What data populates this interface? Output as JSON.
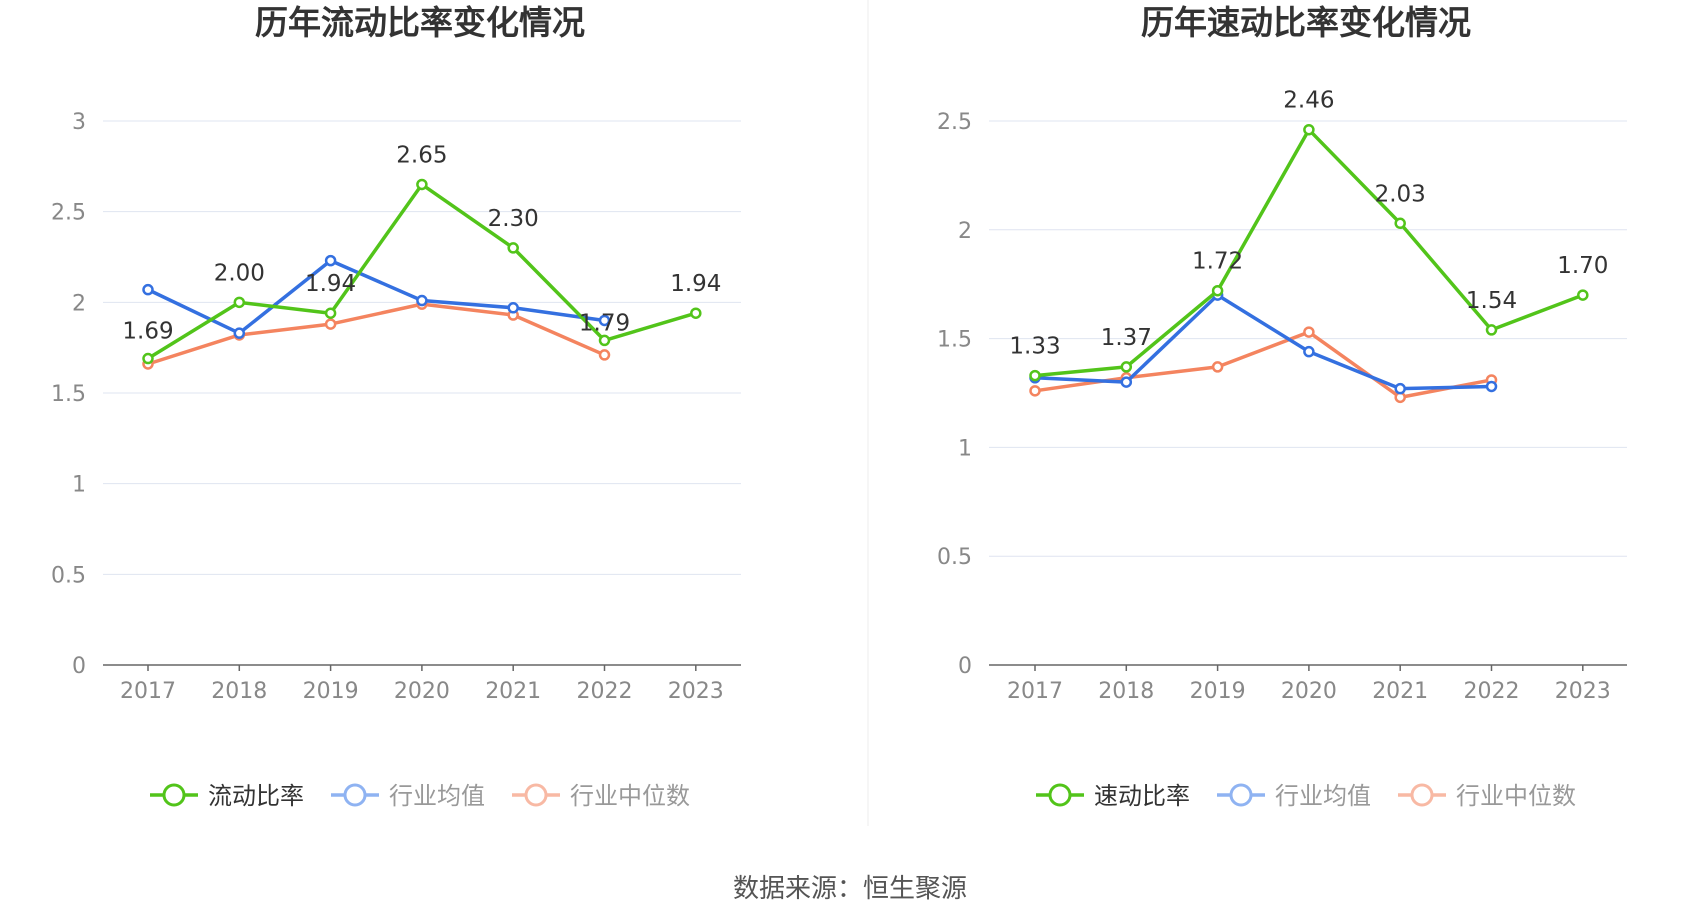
{
  "source_text": "数据来源：恒生聚源",
  "colors": {
    "main": "#52c41a",
    "avg": "#3470e0",
    "median": "#f4845f",
    "avg_legend": "#8fb3f2",
    "median_legend": "#f8b9a4"
  },
  "chart_data": [
    {
      "type": "line",
      "title": "历年流动比率变化情况",
      "categories": [
        "2017",
        "2018",
        "2019",
        "2020",
        "2021",
        "2022",
        "2023"
      ],
      "ylim": [
        0,
        3
      ],
      "yticks": [
        "0",
        "0.5",
        "1",
        "1.5",
        "2",
        "2.5",
        "3"
      ],
      "grid": true,
      "legend": "bottom-center",
      "series": [
        {
          "name": "流动比率",
          "values": [
            1.69,
            2.0,
            1.94,
            2.65,
            2.3,
            1.79,
            1.94
          ],
          "labels": [
            "1.69",
            "2.00",
            "1.94",
            "2.65",
            "2.30",
            "1.79",
            "1.94"
          ]
        },
        {
          "name": "行业均值",
          "values": [
            2.07,
            1.83,
            2.23,
            2.01,
            1.97,
            1.9,
            null
          ]
        },
        {
          "name": "行业中位数",
          "values": [
            1.66,
            1.82,
            1.88,
            1.99,
            1.93,
            1.71,
            null
          ]
        }
      ]
    },
    {
      "type": "line",
      "title": "历年速动比率变化情况",
      "categories": [
        "2017",
        "2018",
        "2019",
        "2020",
        "2021",
        "2022",
        "2023"
      ],
      "ylim": [
        0,
        2.5
      ],
      "yticks": [
        "0",
        "0.5",
        "1",
        "1.5",
        "2",
        "2.5"
      ],
      "grid": true,
      "legend": "bottom-center",
      "series": [
        {
          "name": "速动比率",
          "values": [
            1.33,
            1.37,
            1.72,
            2.46,
            2.03,
            1.54,
            1.7
          ],
          "labels": [
            "1.33",
            "1.37",
            "1.72",
            "2.46",
            "2.03",
            "1.54",
            "1.70"
          ]
        },
        {
          "name": "行业均值",
          "values": [
            1.32,
            1.3,
            1.7,
            1.44,
            1.27,
            1.28,
            null
          ]
        },
        {
          "name": "行业中位数",
          "values": [
            1.26,
            1.32,
            1.37,
            1.53,
            1.23,
            1.31,
            null
          ]
        }
      ]
    }
  ]
}
